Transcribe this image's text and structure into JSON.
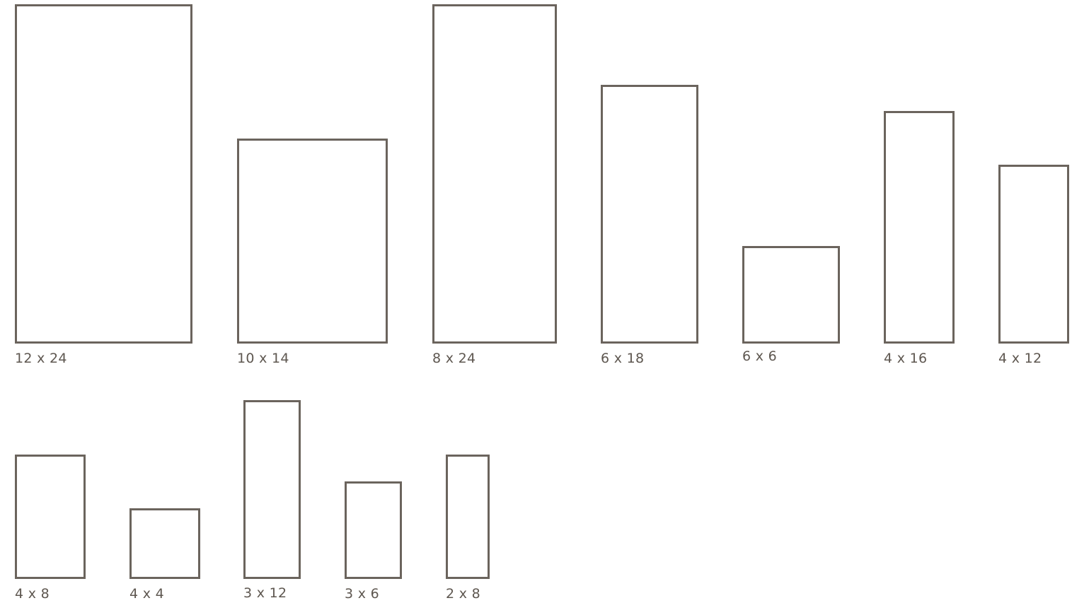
{
  "sizes": [
    {
      "label": "12 x 24"
    },
    {
      "label": "10 x 14"
    },
    {
      "label": "8 x 24"
    },
    {
      "label": "6 x 18"
    },
    {
      "label": "6 x 6"
    },
    {
      "label": "4 x 16"
    },
    {
      "label": "4 x 12"
    },
    {
      "label": "4 x 8"
    },
    {
      "label": "4 x 4"
    },
    {
      "label": "3 x 12"
    },
    {
      "label": "3 x 6"
    },
    {
      "label": "2 x 8"
    }
  ],
  "colors": {
    "outline": "#6b645d",
    "text": "#5e5750"
  }
}
